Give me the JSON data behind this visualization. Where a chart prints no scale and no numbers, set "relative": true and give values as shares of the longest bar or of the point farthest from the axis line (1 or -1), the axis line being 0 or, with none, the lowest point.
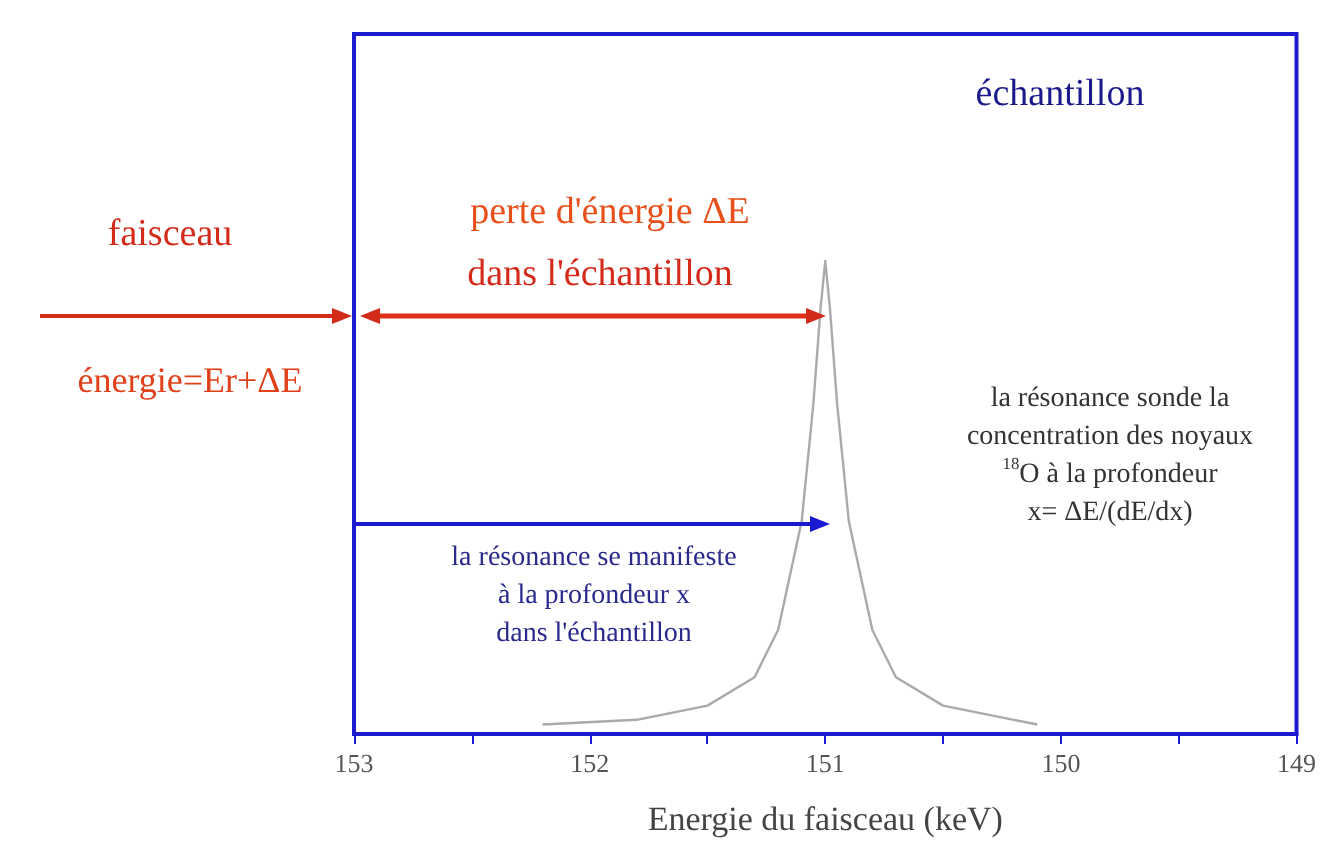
{
  "chart_data": {
    "type": "line",
    "relative": true,
    "xlabel": "Energie du faisceau (keV)",
    "x": [
      152.2,
      151.8,
      151.5,
      151.3,
      151.2,
      151.1,
      151.05,
      151.02,
      151.0,
      150.98,
      150.95,
      150.9,
      150.8,
      150.7,
      150.5,
      150.2,
      150.1
    ],
    "series": [
      {
        "color": "#aaaaaa",
        "values": [
          0.02,
          0.03,
          0.06,
          0.12,
          0.22,
          0.45,
          0.7,
          0.9,
          1,
          0.9,
          0.7,
          0.45,
          0.22,
          0.12,
          0.06,
          0.03,
          0.02
        ]
      }
    ],
    "xlim": [
      153,
      149
    ],
    "xticks": [
      153,
      {
        "value": 152.5,
        "label": null
      },
      152,
      {
        "value": 151.5,
        "label": null
      },
      151,
      {
        "value": 150.5,
        "label": null
      },
      150,
      {
        "value": 149.5,
        "label": null
      },
      149
    ],
    "grid": false,
    "annotations": [
      "échantillon",
      "faisceau",
      "perte d'énergie ΔE",
      "dans l'échantillon",
      "énergie=Er+ΔE",
      "la résonance sonde la\nconcentration des noyaux\n$^{18}$O à la profondeur\nx= ΔE/(dE/dx)",
      "la résonance se manifeste\nà la profondeur x\ndans l'échantillon"
    ]
  }
}
